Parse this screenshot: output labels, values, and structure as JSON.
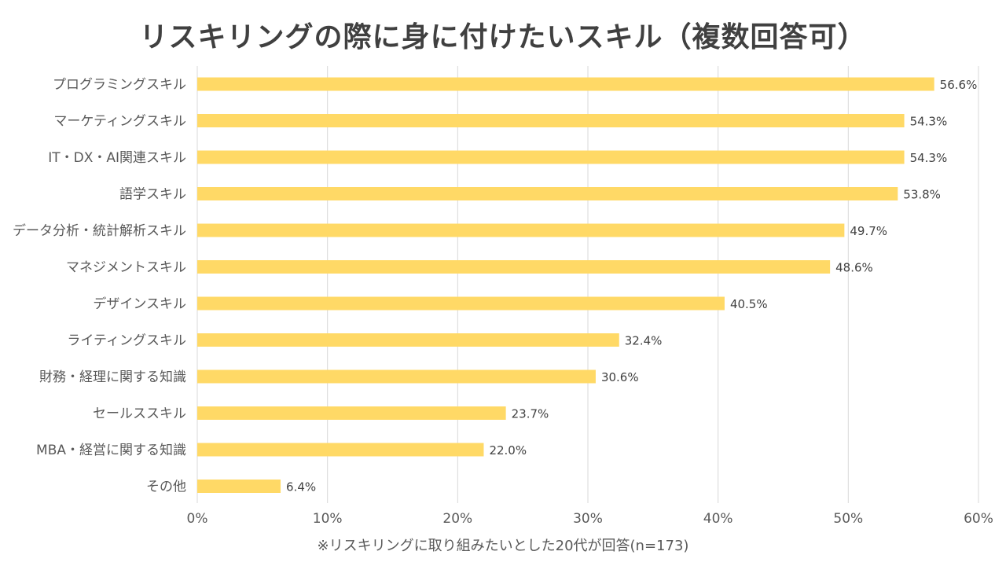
{
  "chart_data": {
    "type": "bar",
    "orientation": "horizontal",
    "title": "リスキリングの際に身に付けたいスキル（複数回答可）",
    "categories": [
      "プログラミングスキル",
      "マーケティングスキル",
      "IT・DX・AI関連スキル",
      "語学スキル",
      "データ分析・統計解析スキル",
      "マネジメントスキル",
      "デザインスキル",
      "ライティングスキル",
      "財務・経理に関する知識",
      "セールススキル",
      "MBA・経営に関する知識",
      "その他"
    ],
    "values": [
      56.6,
      54.3,
      54.3,
      53.8,
      49.7,
      48.6,
      40.5,
      32.4,
      30.6,
      23.7,
      22.0,
      6.4
    ],
    "value_labels": [
      "56.6%",
      "54.3%",
      "54.3%",
      "53.8%",
      "49.7%",
      "48.6%",
      "40.5%",
      "32.4%",
      "30.6%",
      "23.7%",
      "22.0%",
      "6.4%"
    ],
    "xlim": [
      0,
      60
    ],
    "x_ticks": [
      0,
      10,
      20,
      30,
      40,
      50,
      60
    ],
    "x_tick_labels": [
      "0%",
      "10%",
      "20%",
      "30%",
      "40%",
      "50%",
      "60%"
    ],
    "grid": "vertical",
    "legend": "none",
    "bar_color": "#FFD966",
    "footnote": "※リスキリングに取り組みたいとした20代が回答(n=173)"
  }
}
